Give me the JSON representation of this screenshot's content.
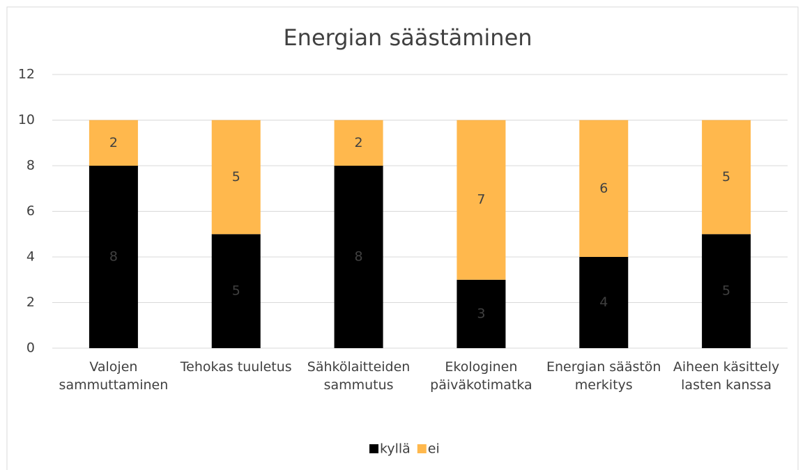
{
  "chart_data": {
    "type": "stacked_bar",
    "title": "Energian säästäminen",
    "categories": [
      "Valojen sammuttaminen",
      "Tehokas tuuletus",
      "Sähkölaitteiden sammutus",
      "Ekologinen päiväkotimatka",
      "Energian säästön merkitys",
      "Aiheen käsittely lasten kanssa"
    ],
    "series": [
      {
        "name": "kyllä",
        "color": "#000000",
        "values": [
          8,
          5,
          8,
          3,
          4,
          5
        ]
      },
      {
        "name": "ei",
        "color": "#ffb84d",
        "values": [
          2,
          5,
          2,
          7,
          6,
          5
        ]
      }
    ],
    "ylim": [
      0,
      12
    ],
    "yticks": [
      0,
      2,
      4,
      6,
      8,
      10,
      12
    ],
    "grid": true,
    "legend": "bottom"
  }
}
